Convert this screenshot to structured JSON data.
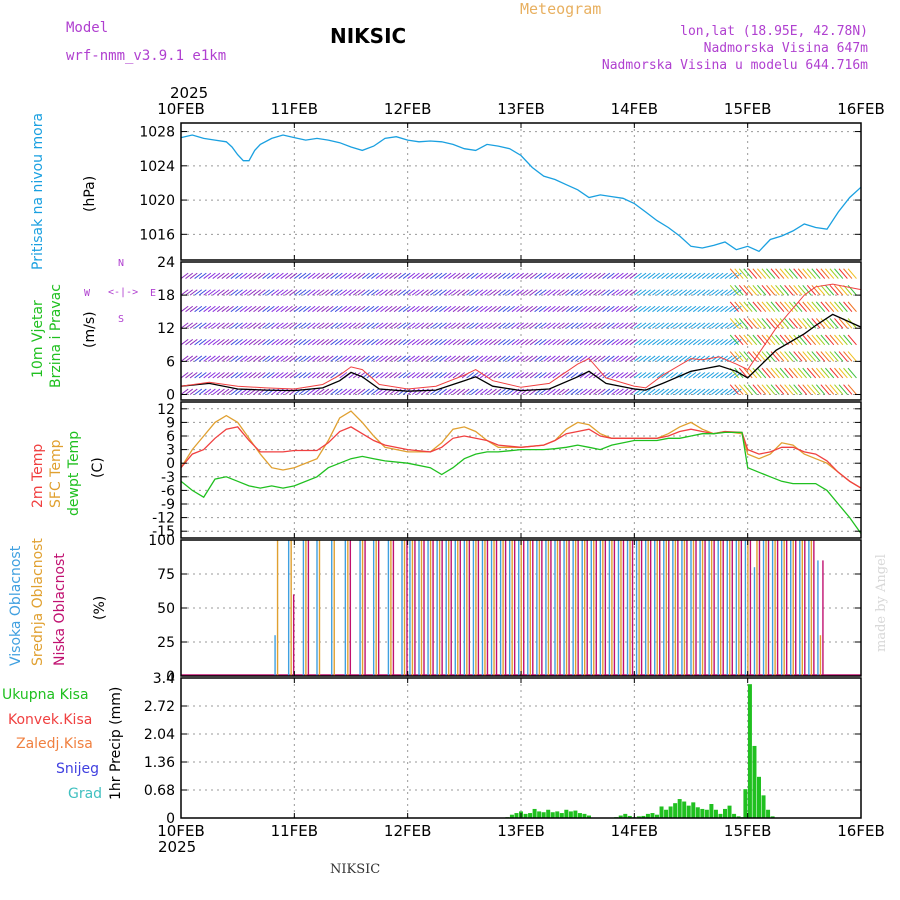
{
  "header": {
    "model_label": "Model",
    "model_name": "wrf-nmm_v3.9.1 e1km",
    "meteogram_label": "Meteogram",
    "station": "NIKSIC",
    "lonlat": "lon,lat (18.95E, 42.78N)",
    "altitude": "Nadmorska Visina 647m",
    "model_altitude": "Nadmorska Visina u modelu 644.716m",
    "year_top": "2025",
    "year_bottom": "2025",
    "footer_station": "NIKSIC",
    "credit": "made by Angel"
  },
  "colors": {
    "pressure": "#1aa0e0",
    "temp2m": "#f04040",
    "sfc_temp": "#e0a030",
    "dewpt": "#20c020",
    "high_cloud": "#40a0e0",
    "mid_cloud": "#e0a030",
    "low_cloud": "#c01070",
    "total_precip": "#20c020",
    "wind_speed": "#000000",
    "header_text": "#b040d0"
  },
  "panel_labels": {
    "pressure": [
      "Pritisak na nivou mora",
      "(hPa)"
    ],
    "wind": [
      "10m Vjetar",
      "Brzina i Pravac",
      "(m/s)"
    ],
    "temp": [
      "2m Temp",
      "SFC Temp",
      "dewpt Temp",
      "(C)"
    ],
    "cloud": [
      "Visoka Oblacnost",
      "Srednja Oblacnost",
      "Niska Oblacnost",
      "(%)"
    ],
    "precip_legend": [
      "Ukupna Kisa",
      "Konvek.Kisa",
      "Zaledj.Kisa",
      "Snijeg",
      "Grad"
    ],
    "precip_unit": "1hr Precip (mm)"
  },
  "compass": {
    "n": "N",
    "s": "S",
    "w": "W",
    "e": "E"
  },
  "chart_data": [
    {
      "type": "line",
      "panel": "pressure",
      "ylabel": "(hPa)",
      "ylim": [
        1013,
        1029
      ],
      "yticks": [
        "1016",
        "1020",
        "1024",
        "1028"
      ],
      "xticks": [
        "10FEB",
        "11FEB",
        "12FEB",
        "13FEB",
        "14FEB",
        "15FEB",
        "16FEB"
      ],
      "x": [
        0,
        0.1,
        0.2,
        0.3,
        0.4,
        0.45,
        0.5,
        0.55,
        0.6,
        0.65,
        0.7,
        0.8,
        0.9,
        1.0,
        1.1,
        1.2,
        1.3,
        1.4,
        1.5,
        1.6,
        1.7,
        1.8,
        1.9,
        2.0,
        2.1,
        2.2,
        2.3,
        2.4,
        2.5,
        2.6,
        2.7,
        2.8,
        2.9,
        3.0,
        3.1,
        3.2,
        3.3,
        3.4,
        3.5,
        3.6,
        3.7,
        3.8,
        3.9,
        4.0,
        4.1,
        4.2,
        4.3,
        4.4,
        4.5,
        4.6,
        4.7,
        4.8,
        4.9,
        5.0,
        5.1,
        5.2,
        5.3,
        5.4,
        5.5,
        5.6,
        5.7,
        5.8,
        5.9,
        6.0
      ],
      "series": [
        {
          "values": [
            1027.3,
            1027.6,
            1027.2,
            1027.0,
            1026.8,
            1026.2,
            1025.3,
            1024.6,
            1024.6,
            1025.8,
            1026.5,
            1027.2,
            1027.6,
            1027.3,
            1027.0,
            1027.2,
            1027.0,
            1026.7,
            1026.2,
            1025.8,
            1026.3,
            1027.2,
            1027.4,
            1027.0,
            1026.8,
            1026.9,
            1026.8,
            1026.5,
            1026.0,
            1025.8,
            1026.5,
            1026.3,
            1026.0,
            1025.2,
            1023.8,
            1022.8,
            1022.4,
            1021.8,
            1021.2,
            1020.3,
            1020.6,
            1020.4,
            1020.2,
            1019.6,
            1018.6,
            1017.6,
            1016.8,
            1015.8,
            1014.6,
            1014.4,
            1014.7,
            1015.1,
            1014.2,
            1014.6,
            1014.0,
            1015.4,
            1015.8,
            1016.4,
            1017.2,
            1016.8,
            1016.6,
            1018.6,
            1020.3,
            1021.5
          ]
        }
      ]
    },
    {
      "type": "line",
      "panel": "wind",
      "ylabel": "(m/s)",
      "ylim": [
        -1,
        24
      ],
      "yticks": [
        "0",
        "6",
        "12",
        "18",
        "24"
      ],
      "x": [
        0,
        0.25,
        0.5,
        0.75,
        1.0,
        1.25,
        1.4,
        1.5,
        1.6,
        1.75,
        2.0,
        2.25,
        2.5,
        2.6,
        2.75,
        3.0,
        3.25,
        3.5,
        3.6,
        3.75,
        4.0,
        4.1,
        4.25,
        4.5,
        4.6,
        4.75,
        4.9,
        5.0,
        5.25,
        5.5,
        5.6,
        5.75,
        6.0
      ],
      "series": [
        {
          "values": [
            1.5,
            2.0,
            1.0,
            0.8,
            0.7,
            1.2,
            2.5,
            4.0,
            3.2,
            1.0,
            0.6,
            0.8,
            2.5,
            3.2,
            1.5,
            0.7,
            1.0,
            3.2,
            4.2,
            2.0,
            1.0,
            0.8,
            2.0,
            4.2,
            4.6,
            5.2,
            4.2,
            3.0,
            8.0,
            11.0,
            12.5,
            14.5,
            12.2
          ]
        },
        {
          "values": [
            1.5,
            2.2,
            1.5,
            1.2,
            1.0,
            1.8,
            3.5,
            5.0,
            4.5,
            1.8,
            1.0,
            1.5,
            3.5,
            4.5,
            2.5,
            1.3,
            2.0,
            5.5,
            6.5,
            3.0,
            1.5,
            1.2,
            3.5,
            6.5,
            6.3,
            6.8,
            5.5,
            4.5,
            12.0,
            18.0,
            19.5,
            20.0,
            19.0
          ]
        }
      ]
    },
    {
      "type": "line",
      "panel": "temperature",
      "ylabel": "(C)",
      "ylim": [
        -16.5,
        13.5
      ],
      "yticks": [
        "-15",
        "-12",
        "-9",
        "-6",
        "-3",
        "0",
        "3",
        "6",
        "9",
        "12"
      ],
      "x": [
        0,
        0.1,
        0.2,
        0.3,
        0.4,
        0.5,
        0.6,
        0.7,
        0.8,
        0.9,
        1.0,
        1.2,
        1.3,
        1.4,
        1.5,
        1.6,
        1.7,
        1.8,
        2.0,
        2.2,
        2.3,
        2.4,
        2.5,
        2.6,
        2.7,
        2.8,
        3.0,
        3.2,
        3.3,
        3.4,
        3.5,
        3.6,
        3.7,
        3.8,
        4.0,
        4.2,
        4.3,
        4.4,
        4.5,
        4.6,
        4.7,
        4.8,
        4.95,
        5.0,
        5.1,
        5.2,
        5.3,
        5.4,
        5.5,
        5.6,
        5.7,
        5.8,
        5.9,
        6.0
      ],
      "series": [
        {
          "name": "2m Temp",
          "values": [
            -1.0,
            2.0,
            3.0,
            5.5,
            7.5,
            8.0,
            5.0,
            2.5,
            2.5,
            2.5,
            2.8,
            2.8,
            4.5,
            7.0,
            8.0,
            6.5,
            5.0,
            4.0,
            3.0,
            2.5,
            3.5,
            5.5,
            6.0,
            5.5,
            5.0,
            4.0,
            3.5,
            4.0,
            5.0,
            6.5,
            7.0,
            7.5,
            6.0,
            5.5,
            5.5,
            5.5,
            6.0,
            7.0,
            7.5,
            7.0,
            6.5,
            7.0,
            6.8,
            3.0,
            2.0,
            2.5,
            3.5,
            3.5,
            2.5,
            2.0,
            0.5,
            -2.0,
            -4.0,
            -5.5
          ]
        },
        {
          "name": "SFC Temp",
          "values": [
            -1.0,
            3.0,
            6.0,
            9.0,
            10.5,
            9.0,
            5.5,
            2.0,
            -1.0,
            -1.5,
            -1.0,
            1.0,
            5.0,
            10.0,
            11.5,
            9.0,
            6.0,
            3.5,
            2.5,
            2.5,
            4.5,
            7.5,
            8.0,
            7.0,
            5.0,
            3.5,
            3.5,
            4.0,
            5.0,
            7.5,
            9.0,
            8.5,
            6.5,
            5.5,
            5.5,
            5.5,
            6.5,
            8.0,
            9.0,
            7.5,
            6.5,
            7.0,
            6.5,
            2.0,
            1.0,
            2.0,
            4.5,
            4.0,
            2.0,
            1.0,
            0.0,
            -2.0,
            -4.0,
            -5.5
          ]
        },
        {
          "name": "dewpt Temp",
          "values": [
            -4.0,
            -6.0,
            -7.5,
            -3.5,
            -3.0,
            -4.0,
            -5.0,
            -5.5,
            -5.0,
            -5.5,
            -5.0,
            -3.0,
            -1.0,
            0.0,
            1.0,
            1.5,
            1.0,
            0.5,
            0.0,
            -1.0,
            -2.5,
            -1.0,
            1.0,
            2.0,
            2.5,
            2.5,
            3.0,
            3.0,
            3.2,
            3.5,
            4.0,
            3.5,
            3.0,
            4.0,
            5.0,
            5.0,
            5.5,
            5.5,
            6.0,
            6.5,
            6.5,
            6.8,
            6.8,
            -1.0,
            -2.0,
            -3.0,
            -4.0,
            -4.5,
            -4.5,
            -4.5,
            -6.0,
            -9.0,
            -12.0,
            -15.5
          ]
        }
      ]
    },
    {
      "type": "bar",
      "panel": "cloud",
      "ylabel": "(%)",
      "ylim": [
        0,
        100
      ],
      "yticks": [
        "0",
        "25",
        "50",
        "75",
        "100"
      ],
      "x": [
        0.83,
        0.95,
        1.08,
        1.2,
        1.33,
        1.45,
        1.58,
        1.7,
        1.83,
        1.95,
        2.02,
        2.1,
        2.18,
        2.26,
        2.34,
        2.42,
        2.5,
        2.58,
        2.66,
        2.74,
        2.82,
        2.9,
        2.98,
        3.06,
        3.14,
        3.22,
        3.3,
        3.38,
        3.46,
        3.54,
        3.62,
        3.7,
        3.78,
        3.86,
        3.94,
        4.02,
        4.1,
        4.18,
        4.26,
        4.34,
        4.42,
        4.5,
        4.58,
        4.66,
        4.74,
        4.82,
        4.9,
        4.98,
        5.06,
        5.14,
        5.22,
        5.3,
        5.38,
        5.46,
        5.54,
        5.62
      ],
      "series": [
        {
          "name": "Visoka Oblacnost",
          "values": [
            30,
            100,
            100,
            100,
            100,
            100,
            100,
            100,
            100,
            100,
            100,
            100,
            100,
            100,
            100,
            100,
            100,
            100,
            100,
            100,
            100,
            100,
            100,
            100,
            100,
            100,
            100,
            100,
            100,
            100,
            100,
            100,
            100,
            100,
            100,
            100,
            100,
            100,
            100,
            100,
            100,
            100,
            100,
            100,
            100,
            100,
            100,
            100,
            80,
            100,
            100,
            100,
            100,
            100,
            100,
            85
          ]
        },
        {
          "name": "Srednja Oblacnost",
          "values": [
            100,
            100,
            100,
            100,
            100,
            100,
            100,
            100,
            100,
            100,
            100,
            100,
            100,
            100,
            100,
            100,
            100,
            100,
            100,
            100,
            100,
            100,
            100,
            100,
            100,
            100,
            100,
            100,
            100,
            100,
            100,
            100,
            100,
            100,
            100,
            100,
            100,
            100,
            100,
            100,
            100,
            100,
            100,
            100,
            100,
            100,
            100,
            100,
            100,
            100,
            100,
            100,
            100,
            100,
            100,
            30
          ]
        },
        {
          "name": "Niska Oblacnost",
          "values": [
            0,
            60,
            100,
            0,
            0,
            100,
            100,
            100,
            100,
            100,
            100,
            100,
            100,
            100,
            100,
            100,
            100,
            100,
            100,
            100,
            100,
            100,
            100,
            100,
            100,
            100,
            100,
            100,
            100,
            100,
            100,
            100,
            100,
            100,
            100,
            100,
            100,
            100,
            100,
            100,
            100,
            100,
            100,
            100,
            100,
            100,
            100,
            100,
            100,
            100,
            100,
            100,
            100,
            100,
            100,
            85
          ]
        }
      ]
    },
    {
      "type": "bar",
      "panel": "precip",
      "ylabel": "1hr Precip (mm)",
      "ylim": [
        0,
        3.4
      ],
      "yticks": [
        "0",
        "0.68",
        "1.36",
        "2.04",
        "2.72",
        "3.4"
      ],
      "xticks": [
        "10FEB",
        "11FEB",
        "12FEB",
        "13FEB",
        "14FEB",
        "15FEB",
        "16FEB"
      ],
      "x": [
        2.88,
        2.92,
        2.96,
        3.0,
        3.04,
        3.08,
        3.12,
        3.16,
        3.2,
        3.24,
        3.28,
        3.32,
        3.36,
        3.4,
        3.44,
        3.48,
        3.52,
        3.56,
        3.6,
        3.84,
        3.88,
        3.92,
        3.96,
        4.0,
        4.04,
        4.08,
        4.12,
        4.16,
        4.2,
        4.24,
        4.28,
        4.32,
        4.36,
        4.4,
        4.44,
        4.48,
        4.52,
        4.56,
        4.6,
        4.64,
        4.68,
        4.72,
        4.76,
        4.8,
        4.84,
        4.88,
        4.92,
        4.96,
        4.98,
        5.02,
        5.06,
        5.1,
        5.14,
        5.18,
        5.22
      ],
      "series": [
        {
          "name": "Ukupna Kisa",
          "values": [
            0.02,
            0.08,
            0.12,
            0.16,
            0.1,
            0.12,
            0.22,
            0.16,
            0.14,
            0.2,
            0.14,
            0.16,
            0.12,
            0.2,
            0.16,
            0.18,
            0.12,
            0.1,
            0.06,
            0.02,
            0.06,
            0.1,
            0.05,
            0.02,
            0.04,
            0.05,
            0.1,
            0.12,
            0.08,
            0.28,
            0.2,
            0.28,
            0.36,
            0.46,
            0.4,
            0.3,
            0.38,
            0.26,
            0.22,
            0.2,
            0.34,
            0.2,
            0.1,
            0.22,
            0.3,
            0.1,
            0.04,
            0.02,
            0.7,
            3.25,
            1.75,
            1.0,
            0.55,
            0.2,
            0.04
          ]
        }
      ]
    }
  ]
}
